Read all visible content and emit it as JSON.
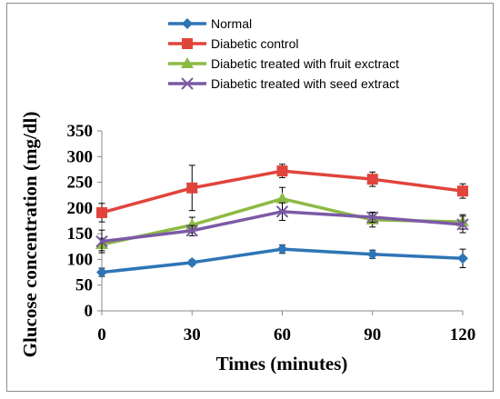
{
  "chart_data": {
    "type": "line",
    "xlabel": "Times (minutes)",
    "ylabel": "Glucose concentration (mg/dl)",
    "x": [
      0,
      30,
      60,
      90,
      120
    ],
    "xlim": [
      0,
      120
    ],
    "ylim": [
      0,
      350
    ],
    "yticks": [
      0,
      50,
      100,
      150,
      200,
      250,
      300,
      350
    ],
    "grid": false,
    "legend_position": "top",
    "series": [
      {
        "name": "Normal",
        "color": "#2e75b6",
        "marker": "diamond",
        "values": [
          75,
          94,
          120,
          110,
          102
        ],
        "errors": [
          8,
          5,
          8,
          8,
          18
        ]
      },
      {
        "name": "Diabetic control",
        "color": "#e0443c",
        "marker": "square",
        "values": [
          191,
          239,
          272,
          256,
          233
        ],
        "errors": [
          18,
          44,
          13,
          14,
          14
        ]
      },
      {
        "name": "Diabetic treated with fruit exctract",
        "color": "#8cba43",
        "marker": "triangle",
        "values": [
          129,
          167,
          218,
          177,
          173
        ],
        "errors": [
          12,
          15,
          22,
          14,
          14
        ]
      },
      {
        "name": "Diabetic treated with seed extract",
        "color": "#7b5aa6",
        "marker": "x",
        "values": [
          135,
          156,
          193,
          182,
          168
        ],
        "errors": [
          22,
          10,
          17,
          10,
          16
        ]
      }
    ]
  }
}
